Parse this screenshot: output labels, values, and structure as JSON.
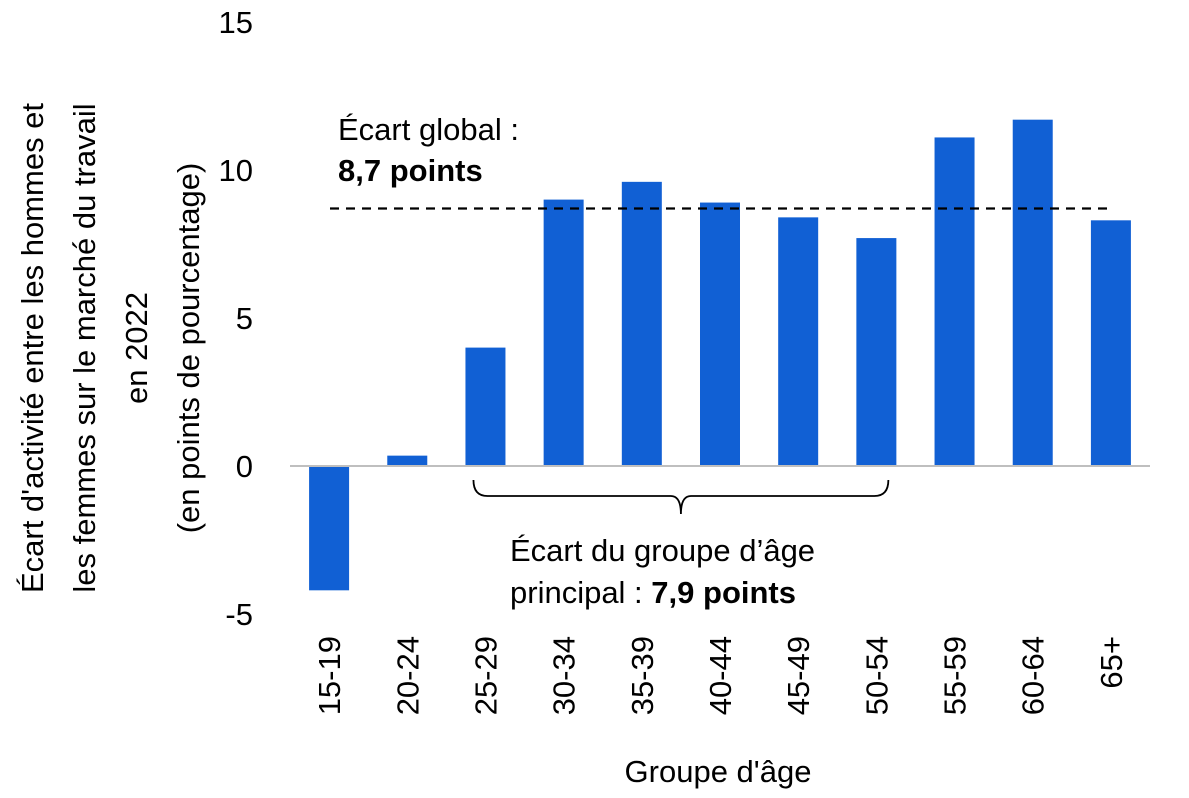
{
  "chart_data": {
    "type": "bar",
    "categories": [
      "15-19",
      "20-24",
      "25-29",
      "30-34",
      "35-39",
      "40-44",
      "45-49",
      "50-54",
      "55-59",
      "60-64",
      "65+"
    ],
    "series": [
      {
        "values": [
          -4.2,
          0.35,
          4.0,
          9.0,
          9.6,
          8.9,
          8.4,
          7.7,
          11.1,
          11.7,
          8.3
        ]
      }
    ],
    "xlabel": "Groupe d'âge",
    "ylabel_lines": [
      "Écart d'activité entre les hommes et",
      "les femmes sur le marché du travail",
      "en 2022",
      "(en points de pourcentage)"
    ],
    "ylim": [
      -5,
      15
    ],
    "yticks": [
      "15",
      "10",
      "5",
      "0",
      "-5"
    ],
    "ytick_values": [
      15,
      10,
      5,
      0,
      -5
    ],
    "reference_line": {
      "value": 8.7,
      "label_line1": "Écart global :",
      "label_line2": "8,7 points"
    },
    "bracket": {
      "from_category": "25-29",
      "to_category": "50-54",
      "label_line1": "Écart du groupe d’âge",
      "label_line2_prefix": "principal : ",
      "label_line2_bold": "7,9 points"
    },
    "bar_color": "#1160d4",
    "grid": false
  }
}
